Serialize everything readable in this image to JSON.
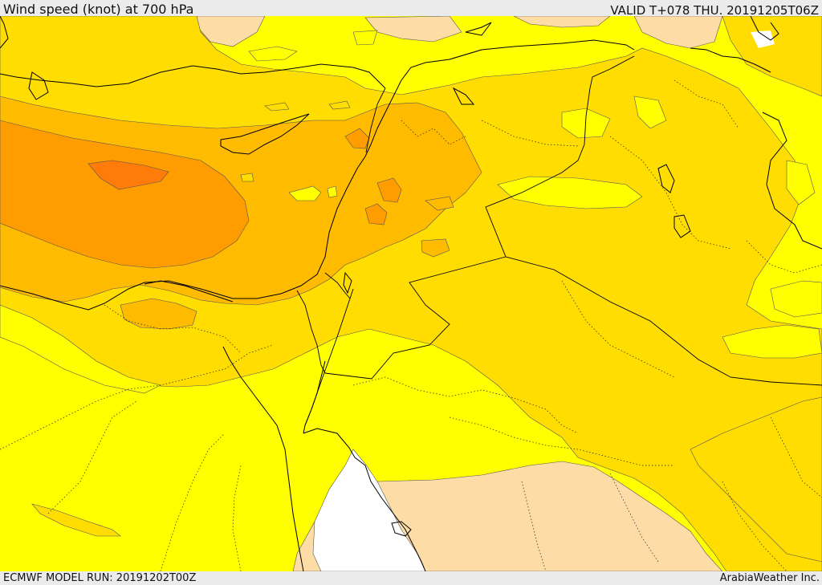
{
  "header": {
    "title": "Wind speed (knot) at 700 hPa",
    "valid_time": "VALID T+078 THU. 20191205T06Z"
  },
  "footer": {
    "model_run": "ECMWF MODEL RUN: 20191202T00Z",
    "credit": "ArabiaWeather Inc."
  },
  "map": {
    "variable": "Wind speed at 700 hPa",
    "units": "knot",
    "colors": {
      "weak_shade": "#fddca6",
      "base": "#ffff00",
      "moderate": "#ffdd00",
      "strong": "#ffbb00",
      "stronger": "#ff9d00",
      "strongest": "#ff7c0a",
      "sea_void": "#ffffff"
    }
  }
}
